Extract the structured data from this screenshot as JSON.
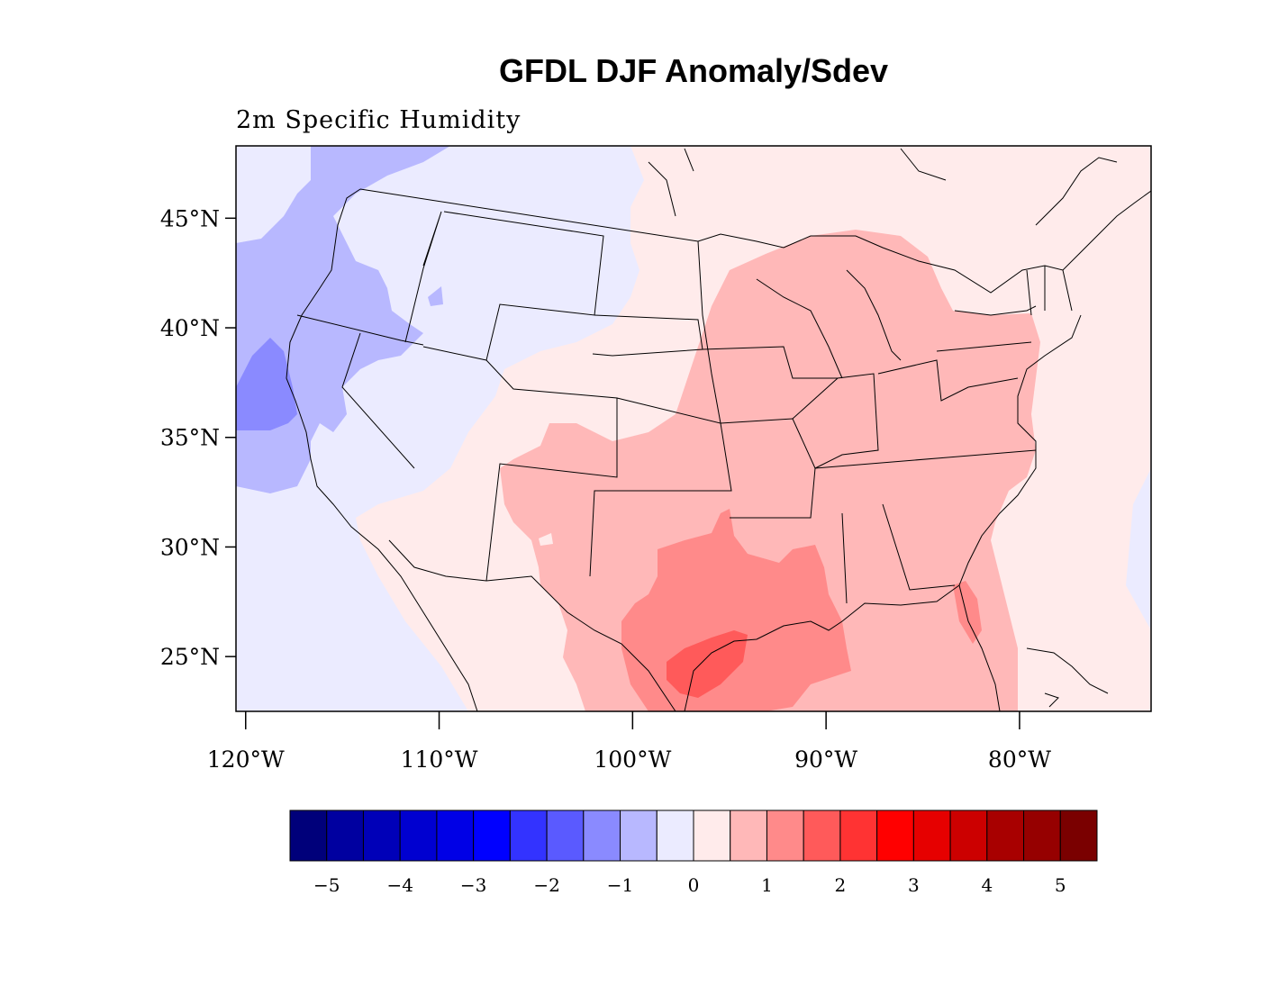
{
  "title": "GFDL DJF Anomaly/Sdev",
  "subtitle": "2m Specific Humidity",
  "map": {
    "lon_range": [
      -120.5,
      -73.2
    ],
    "lat_range": [
      22.5,
      48.3
    ],
    "lat_ticks": [
      {
        "value": 45,
        "label": "45°N"
      },
      {
        "value": 40,
        "label": "40°N"
      },
      {
        "value": 35,
        "label": "35°N"
      },
      {
        "value": 30,
        "label": "30°N"
      },
      {
        "value": 25,
        "label": "25°N"
      }
    ],
    "lon_ticks": [
      {
        "value": -120,
        "label": "120°W"
      },
      {
        "value": -110,
        "label": "110°W"
      },
      {
        "value": -100,
        "label": "100°W"
      },
      {
        "value": -90,
        "label": "90°W"
      },
      {
        "value": -80,
        "label": "80°W"
      }
    ],
    "background_fill": "#EBEBFF"
  },
  "colorbar": {
    "colors": [
      "#00007A",
      "#0000A0",
      "#0000B8",
      "#0000D0",
      "#0000E6",
      "#0000FF",
      "#3333FF",
      "#5A5AFF",
      "#8A8AFF",
      "#B8B8FF",
      "#EBEBFF",
      "#FFEBEB",
      "#FFB8B8",
      "#FF8A8A",
      "#FF5A5A",
      "#FF3333",
      "#FF0000",
      "#E60000",
      "#CC0000",
      "#A80000",
      "#960000",
      "#7A0000"
    ],
    "labels": [
      {
        "after_box": 1,
        "text": "−5"
      },
      {
        "after_box": 3,
        "text": "−4"
      },
      {
        "after_box": 5,
        "text": "−3"
      },
      {
        "after_box": 7,
        "text": "−2"
      },
      {
        "after_box": 9,
        "text": "−1"
      },
      {
        "after_box": 11,
        "text": "0"
      },
      {
        "after_box": 13,
        "text": "1"
      },
      {
        "after_box": 15,
        "text": "2"
      },
      {
        "after_box": 17,
        "text": "3"
      },
      {
        "after_box": 19,
        "text": "4"
      },
      {
        "after_box": 21,
        "text": "5"
      }
    ]
  }
}
